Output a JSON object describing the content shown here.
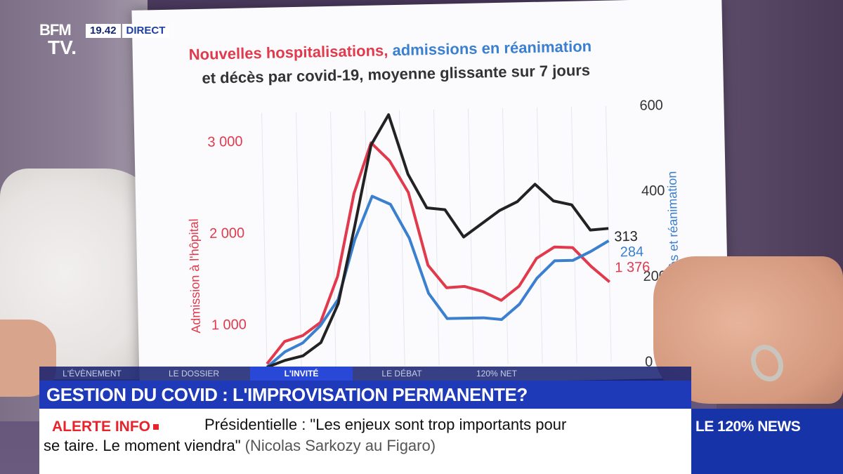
{
  "channel": {
    "logo_line1": "BFM",
    "logo_line2": "TV.",
    "time": "19.42",
    "live_label": "DIRECT"
  },
  "chart_sheet": {
    "title_red": "Nouvelles hospitalisations,",
    "title_blue": "admissions en réanimation",
    "title_dark": "et décès par covid-19, moyenne glissante sur 7 jours",
    "left_axis_label": "Admission à l'hôpital",
    "right_axis_label": "Décès et réanimation",
    "label_313": "313",
    "label_284": "284",
    "label_1376": "1 376"
  },
  "chart_data": {
    "type": "line",
    "title": "Nouvelles hospitalisations, admissions en réanimation et décès par covid-19, moyenne glissante sur 7 jours",
    "ylabel": "Admission à l'hôpital",
    "y2label": "Décès et réanimation",
    "yticks": [
      "1 000",
      "2 000",
      "3 000"
    ],
    "y2ticks": [
      "0",
      "200",
      "400",
      "600"
    ],
    "ylim": [
      500,
      3300
    ],
    "y2lim": [
      0,
      600
    ],
    "grid": true,
    "series": [
      {
        "name": "Nouvelles hospitalisations",
        "axis": "left",
        "color": "#e03a4c",
        "values": [
          560,
          800,
          860,
          1000,
          1500,
          2400,
          2950,
          2750,
          2400,
          1600,
          1350,
          1360,
          1300,
          1200,
          1350,
          1650,
          1770,
          1760,
          1550,
          1376
        ]
      },
      {
        "name": "Admissions en réanimation",
        "axis": "right",
        "color": "#3a7fd0",
        "values": [
          5,
          40,
          60,
          100,
          160,
          300,
          400,
          380,
          300,
          170,
          110,
          110,
          110,
          105,
          140,
          200,
          240,
          240,
          260,
          284
        ]
      },
      {
        "name": "Décès",
        "axis": "right",
        "color": "#222222",
        "values": [
          5,
          20,
          30,
          60,
          150,
          330,
          520,
          590,
          450,
          370,
          365,
          300,
          330,
          360,
          380,
          420,
          380,
          370,
          310,
          313
        ]
      }
    ],
    "end_labels": {
      "hospitalisations": "1 376",
      "reanimation": "284",
      "deces": "313"
    }
  },
  "tabs": [
    {
      "label": "L'ÉVÈNEMENT",
      "active": false
    },
    {
      "label": "LE DOSSIER",
      "active": false
    },
    {
      "label": "L'INVITÉ",
      "active": true
    },
    {
      "label": "LE DÉBAT",
      "active": false
    },
    {
      "label": "120% NET",
      "active": false
    }
  ],
  "headline": "GESTION DU COVID : L'IMPROVISATION PERMANENTE?",
  "ticker": {
    "alert_label": "ALERTE INFO",
    "line1": "Présidentielle : \"Les enjeux sont trop importants pour",
    "line2": "se taire. Le moment viendra\"",
    "source": "(Nicolas Sarkozy au Figaro)"
  },
  "side_box": {
    "label": "LE 120% NEWS"
  },
  "colors": {
    "brand_blue": "#1e3ab8",
    "alert_red": "#e5242c"
  }
}
